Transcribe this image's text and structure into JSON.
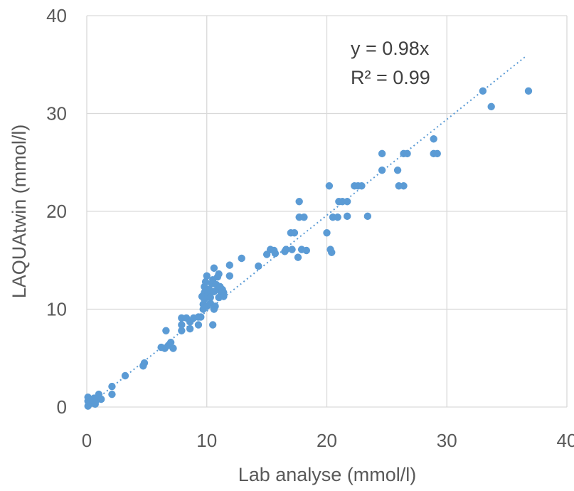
{
  "chart_data": {
    "type": "scatter",
    "title": "",
    "xlabel": "Lab analyse (mmol/l)",
    "ylabel": "LAQUAtwin (mmol/l)",
    "xlim": [
      0,
      40
    ],
    "ylim": [
      0,
      40
    ],
    "xticks": [
      "0",
      "10",
      "20",
      "30",
      "40"
    ],
    "yticks": [
      "0",
      "10",
      "20",
      "30",
      "40"
    ],
    "grid": true,
    "legend": "none",
    "colors": {
      "points": "#5b9bd5",
      "trendline": "#5b9bd5",
      "grid": "#d9d9d9",
      "text": "#595959"
    },
    "trendline": {
      "type": "linear",
      "slope": 0.98,
      "intercept": 0,
      "x_range": [
        0,
        36.6
      ],
      "style": "dotted"
    },
    "annotation": {
      "equation": "y = 0.98x",
      "r2": "R² = 0.99"
    },
    "series": [
      {
        "points": [
          [
            0.1,
            0.1
          ],
          [
            0.2,
            0.3
          ],
          [
            0.1,
            0.6
          ],
          [
            0.1,
            1.0
          ],
          [
            0.3,
            0.5
          ],
          [
            0.5,
            0.4
          ],
          [
            0.7,
            0.3
          ],
          [
            0.8,
            0.7
          ],
          [
            1.0,
            1.3
          ],
          [
            1.2,
            0.8
          ],
          [
            0.6,
            0.9
          ],
          [
            2.1,
            1.3
          ],
          [
            2.1,
            2.1
          ],
          [
            3.2,
            3.2
          ],
          [
            4.7,
            4.2
          ],
          [
            4.8,
            4.5
          ],
          [
            6.2,
            6.1
          ],
          [
            6.5,
            6.0
          ],
          [
            6.6,
            7.8
          ],
          [
            6.8,
            6.3
          ],
          [
            7.0,
            6.6
          ],
          [
            7.2,
            6.0
          ],
          [
            7.9,
            7.8
          ],
          [
            7.9,
            8.4
          ],
          [
            7.9,
            9.1
          ],
          [
            8.3,
            9.1
          ],
          [
            8.6,
            8.0
          ],
          [
            8.6,
            8.7
          ],
          [
            8.9,
            9.1
          ],
          [
            9.3,
            8.4
          ],
          [
            9.3,
            9.2
          ],
          [
            9.5,
            9.2
          ],
          [
            9.6,
            11.3
          ],
          [
            9.7,
            10.0
          ],
          [
            9.7,
            10.5
          ],
          [
            9.8,
            11.0
          ],
          [
            9.8,
            11.7
          ],
          [
            9.8,
            12.3
          ],
          [
            9.9,
            12.8
          ],
          [
            10.0,
            13.4
          ],
          [
            10.0,
            10.3
          ],
          [
            10.1,
            11.5
          ],
          [
            10.2,
            12.0
          ],
          [
            10.3,
            10.6
          ],
          [
            10.3,
            11.2
          ],
          [
            10.4,
            12.6
          ],
          [
            10.5,
            13.0
          ],
          [
            10.5,
            8.4
          ],
          [
            10.6,
            10.0
          ],
          [
            10.6,
            11.8
          ],
          [
            10.6,
            14.2
          ],
          [
            10.7,
            10.3
          ],
          [
            10.8,
            12.5
          ],
          [
            10.9,
            13.3
          ],
          [
            11.0,
            11.2
          ],
          [
            11.0,
            12.0
          ],
          [
            11.0,
            13.6
          ],
          [
            11.1,
            12.3
          ],
          [
            11.2,
            11.6
          ],
          [
            11.3,
            12.0
          ],
          [
            11.4,
            11.7
          ],
          [
            11.4,
            11.3
          ],
          [
            11.9,
            14.5
          ],
          [
            11.9,
            13.4
          ],
          [
            12.9,
            15.2
          ],
          [
            14.3,
            14.4
          ],
          [
            15.0,
            15.6
          ],
          [
            15.3,
            16.1
          ],
          [
            15.6,
            16.0
          ],
          [
            15.7,
            15.7
          ],
          [
            16.5,
            15.9
          ],
          [
            16.6,
            16.1
          ],
          [
            17.0,
            17.8
          ],
          [
            17.1,
            16.1
          ],
          [
            17.3,
            17.8
          ],
          [
            17.6,
            15.3
          ],
          [
            17.7,
            19.4
          ],
          [
            17.7,
            21.0
          ],
          [
            17.9,
            16.1
          ],
          [
            18.1,
            19.4
          ],
          [
            18.3,
            16.0
          ],
          [
            20.0,
            17.8
          ],
          [
            20.3,
            16.1
          ],
          [
            20.4,
            15.8
          ],
          [
            20.2,
            22.6
          ],
          [
            20.5,
            19.4
          ],
          [
            20.9,
            19.4
          ],
          [
            21.0,
            21.0
          ],
          [
            21.3,
            21.0
          ],
          [
            21.7,
            19.5
          ],
          [
            21.7,
            21.0
          ],
          [
            22.3,
            22.6
          ],
          [
            22.6,
            22.6
          ],
          [
            22.9,
            22.6
          ],
          [
            23.4,
            19.5
          ],
          [
            24.6,
            25.9
          ],
          [
            24.6,
            24.2
          ],
          [
            25.9,
            24.2
          ],
          [
            26.0,
            22.6
          ],
          [
            26.4,
            22.6
          ],
          [
            26.4,
            25.9
          ],
          [
            26.7,
            25.9
          ],
          [
            28.9,
            25.9
          ],
          [
            28.9,
            27.4
          ],
          [
            29.2,
            25.9
          ],
          [
            33.0,
            32.3
          ],
          [
            33.7,
            30.7
          ],
          [
            36.8,
            32.3
          ]
        ]
      }
    ]
  }
}
